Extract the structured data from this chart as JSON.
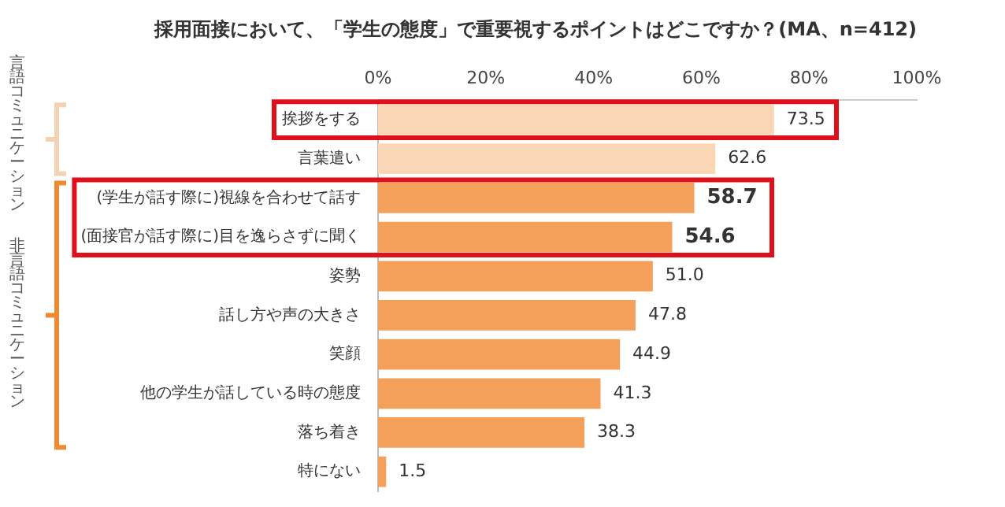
{
  "chart_data": {
    "type": "bar",
    "orientation": "horizontal",
    "title": "採用面接において、「学生の態度」で重要視するポイントはどこですか？(MA、n=412)",
    "categories": [
      "挨拶をする",
      "言葉遣い",
      "(学生が話す際に)視線を合わせて話す",
      "(面接官が話す際に)目を逸らさずに聞く",
      "姿勢",
      "話し方や声の大きさ",
      "笑顔",
      "他の学生が話している時の態度",
      "落ち着き",
      "特にない"
    ],
    "values": [
      73.5,
      62.6,
      58.7,
      54.6,
      51.0,
      47.8,
      44.9,
      41.3,
      38.3,
      1.5
    ],
    "value_labels": [
      "73.5",
      "62.6",
      "58.7",
      "54.6",
      "51.0",
      "47.8",
      "44.9",
      "41.3",
      "38.3",
      "1.5"
    ],
    "colors": [
      "#fad6b4",
      "#fad6b4",
      "#f5a05a",
      "#f5a05a",
      "#f5a05a",
      "#f5a05a",
      "#f5a05a",
      "#f5a05a",
      "#f5a05a",
      "#f5a05a"
    ],
    "xlim": [
      0,
      100
    ],
    "xticks": [
      {
        "value": 0,
        "label": "0%"
      },
      {
        "value": 20,
        "label": "20%"
      },
      {
        "value": 40,
        "label": "40%"
      },
      {
        "value": 60,
        "label": "60%"
      },
      {
        "value": 80,
        "label": "80%"
      },
      {
        "value": 100,
        "label": "100%"
      }
    ],
    "grid": false,
    "legend": false,
    "annotations": [
      "言語コミュニケーション",
      "非言語コミュニケーション"
    ]
  }
}
